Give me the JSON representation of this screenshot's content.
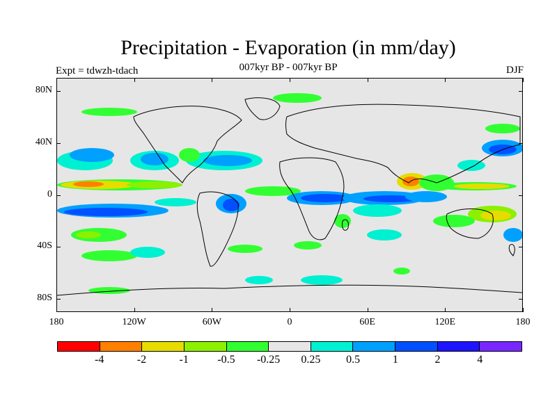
{
  "header": {
    "title": "Precipitation - Evaporation (in mm/day)",
    "subtitle": "007kyr BP - 007kyr BP",
    "left_label": "Expt = tdwzh-tdach",
    "right_label": "DJF"
  },
  "map": {
    "projection": "cylindrical-equidistant",
    "lon_range": [
      -180,
      180
    ],
    "lat_range": [
      -90,
      90
    ],
    "background_color": "#e6e6e6",
    "y_ticks": [
      {
        "lat": 80,
        "label": "80N"
      },
      {
        "lat": 40,
        "label": "40N"
      },
      {
        "lat": 0,
        "label": "0"
      },
      {
        "lat": -40,
        "label": "40S"
      },
      {
        "lat": -80,
        "label": "80S"
      }
    ],
    "x_ticks": [
      {
        "lon": -180,
        "label": "180"
      },
      {
        "lon": -120,
        "label": "120W"
      },
      {
        "lon": -60,
        "label": "60W"
      },
      {
        "lon": 0,
        "label": "0"
      },
      {
        "lon": 60,
        "label": "60E"
      },
      {
        "lon": 120,
        "label": "120E"
      },
      {
        "lon": 180,
        "label": "180"
      }
    ]
  },
  "colorbar": {
    "colors": [
      "#ff0000",
      "#ff8000",
      "#e6dc00",
      "#8cf000",
      "#32ff32",
      "#e6e6e6",
      "#00f0d2",
      "#00a0ff",
      "#0050ff",
      "#1e14ff",
      "#7828ff"
    ],
    "labels": [
      "-4",
      "-2",
      "-1",
      "-0.5",
      "-0.25",
      "0.25",
      "0.5",
      "1",
      "2",
      "4"
    ]
  }
}
